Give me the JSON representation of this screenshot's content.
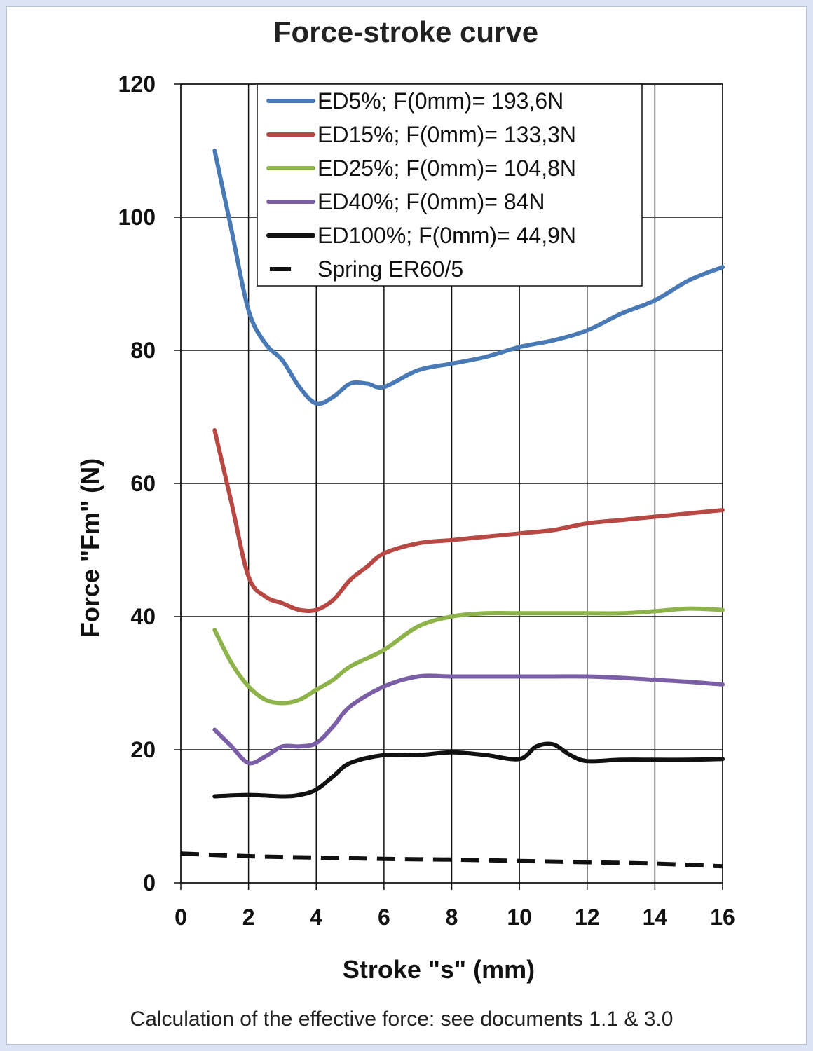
{
  "chart_data": {
    "type": "line",
    "title": "Force-stroke curve",
    "xlabel": "Stroke \"s\" (mm)",
    "ylabel": "Force \"Fm\" (N)",
    "xlim": [
      0,
      16
    ],
    "ylim": [
      0,
      120
    ],
    "xticks": [
      0,
      2,
      4,
      6,
      8,
      10,
      12,
      14,
      16
    ],
    "yticks": [
      0,
      20,
      40,
      60,
      80,
      100,
      120
    ],
    "grid": true,
    "legend_position": "top-center",
    "series": [
      {
        "name": "ED5%; F(0mm)= 193,6N",
        "color": "#4a7ab5",
        "dash": "solid",
        "x": [
          1,
          1.5,
          2,
          2.5,
          3,
          3.5,
          4,
          4.5,
          5,
          5.5,
          6,
          7,
          8,
          9,
          10,
          11,
          12,
          13,
          14,
          15,
          16
        ],
        "y": [
          110,
          98,
          86,
          81,
          78.5,
          74.5,
          72,
          73,
          75,
          75,
          74.5,
          77,
          78,
          79,
          80.5,
          81.5,
          83,
          85.5,
          87.5,
          90.5,
          92.5
        ]
      },
      {
        "name": "ED15%; F(0mm)= 133,3N",
        "color": "#b84844",
        "dash": "solid",
        "x": [
          1,
          1.5,
          2,
          2.5,
          3,
          3.5,
          4,
          4.5,
          5,
          5.5,
          6,
          7,
          8,
          9,
          10,
          11,
          12,
          13,
          14,
          15,
          16
        ],
        "y": [
          68,
          57,
          46,
          43,
          42,
          41,
          41,
          42.5,
          45.5,
          47.5,
          49.5,
          51,
          51.5,
          52,
          52.5,
          53,
          54,
          54.5,
          55,
          55.5,
          56
        ]
      },
      {
        "name": "ED25%; F(0mm)= 104,8N",
        "color": "#8db34a",
        "dash": "solid",
        "x": [
          1,
          1.5,
          2,
          2.5,
          3,
          3.5,
          4,
          4.5,
          5,
          6,
          7,
          8,
          9,
          10,
          11,
          12,
          13,
          14,
          15,
          16
        ],
        "y": [
          38,
          33,
          29.5,
          27.5,
          27,
          27.5,
          29,
          30.5,
          32.5,
          35,
          38.5,
          40,
          40.5,
          40.5,
          40.5,
          40.5,
          40.5,
          40.8,
          41.2,
          41
        ]
      },
      {
        "name": "ED40%; F(0mm)= 84N",
        "color": "#7b5fa6",
        "dash": "solid",
        "x": [
          1,
          1.5,
          2,
          2.5,
          3,
          3.5,
          4,
          4.5,
          5,
          6,
          7,
          8,
          9,
          10,
          11,
          12,
          13,
          14,
          15,
          16
        ],
        "y": [
          23,
          20.5,
          18,
          19,
          20.5,
          20.5,
          21,
          23.5,
          26.5,
          29.5,
          31,
          31,
          31,
          31,
          31,
          31,
          30.8,
          30.5,
          30.2,
          29.8
        ]
      },
      {
        "name": "ED100%; F(0mm)= 44,9N",
        "color": "#111111",
        "dash": "solid",
        "x": [
          1,
          2,
          3,
          3.5,
          4,
          4.5,
          5,
          6,
          7,
          8,
          9,
          10,
          10.5,
          11,
          11.5,
          12,
          13,
          14,
          15,
          16
        ],
        "y": [
          13,
          13.2,
          13,
          13.2,
          14,
          16,
          18,
          19.2,
          19.2,
          19.6,
          19.2,
          18.6,
          20.5,
          20.8,
          19.2,
          18.3,
          18.5,
          18.5,
          18.5,
          18.6
        ]
      },
      {
        "name": "Spring  ER60/5",
        "color": "#111111",
        "dash": "dashed",
        "x": [
          0,
          2,
          4,
          6,
          8,
          10,
          12,
          14,
          16
        ],
        "y": [
          4.4,
          4.0,
          3.8,
          3.6,
          3.5,
          3.3,
          3.1,
          2.9,
          2.5
        ]
      }
    ]
  },
  "footnote": "Calculation of the effective force: see documents 1.1 & 3.0"
}
